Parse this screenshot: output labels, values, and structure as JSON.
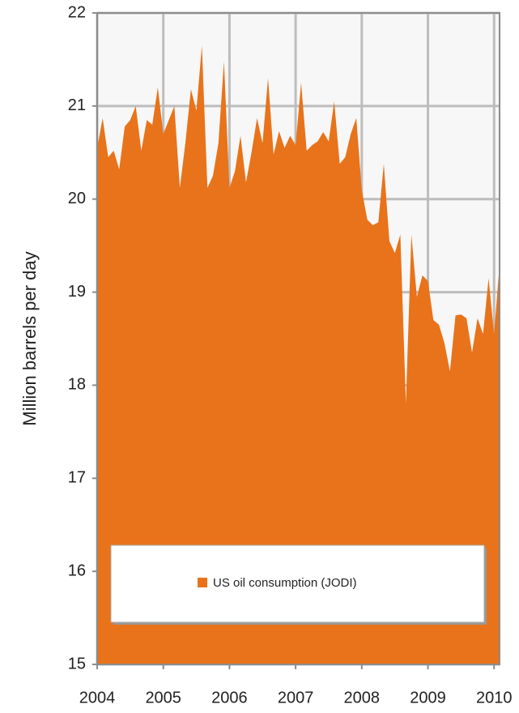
{
  "chart_data": {
    "type": "area",
    "y_label": "Million barrels per day",
    "x": [
      2004,
      2004.083,
      2004.167,
      2004.25,
      2004.333,
      2004.417,
      2004.5,
      2004.583,
      2004.667,
      2004.75,
      2004.833,
      2004.917,
      2005,
      2005.083,
      2005.167,
      2005.25,
      2005.333,
      2005.417,
      2005.5,
      2005.583,
      2005.667,
      2005.75,
      2005.833,
      2005.917,
      2006,
      2006.083,
      2006.167,
      2006.25,
      2006.333,
      2006.417,
      2006.5,
      2006.583,
      2006.667,
      2006.75,
      2006.833,
      2006.917,
      2007,
      2007.083,
      2007.167,
      2007.25,
      2007.333,
      2007.417,
      2007.5,
      2007.583,
      2007.667,
      2007.75,
      2007.833,
      2007.917,
      2008,
      2008.083,
      2008.167,
      2008.25,
      2008.333,
      2008.417,
      2008.5,
      2008.583,
      2008.667,
      2008.75,
      2008.833,
      2008.917,
      2009,
      2009.083,
      2009.167,
      2009.25,
      2009.333,
      2009.417,
      2009.5,
      2009.583,
      2009.667,
      2009.75,
      2009.833,
      2009.917,
      2010,
      2010.083
    ],
    "series": [
      {
        "name": "US oil consumption  (JODI)",
        "color": "#e8731a",
        "values": [
          20.55,
          20.87,
          20.45,
          20.52,
          20.32,
          20.78,
          20.85,
          21.0,
          20.52,
          20.85,
          20.8,
          21.2,
          20.7,
          20.85,
          21.0,
          20.12,
          20.6,
          21.18,
          20.95,
          21.65,
          20.12,
          20.25,
          20.6,
          21.48,
          20.12,
          20.3,
          20.68,
          20.18,
          20.5,
          20.87,
          20.6,
          21.3,
          20.48,
          20.73,
          20.55,
          20.68,
          20.58,
          21.25,
          20.52,
          20.58,
          20.62,
          20.72,
          20.62,
          21.05,
          20.38,
          20.45,
          20.7,
          20.87,
          20.1,
          19.78,
          19.72,
          19.75,
          20.38,
          19.55,
          19.42,
          19.62,
          17.8,
          19.62,
          18.95,
          19.18,
          19.12,
          18.7,
          18.65,
          18.45,
          18.15,
          18.75,
          18.76,
          18.72,
          18.35,
          18.72,
          18.55,
          19.15,
          18.55,
          19.3
        ]
      }
    ],
    "xlim": [
      2004,
      2010.083
    ],
    "xticks": [
      2004,
      2005,
      2006,
      2007,
      2008,
      2009,
      2010
    ],
    "ylim": [
      15,
      22
    ],
    "yticks": [
      15,
      16,
      17,
      18,
      19,
      20,
      21,
      22
    ],
    "grid": true,
    "legend": "bottom"
  }
}
